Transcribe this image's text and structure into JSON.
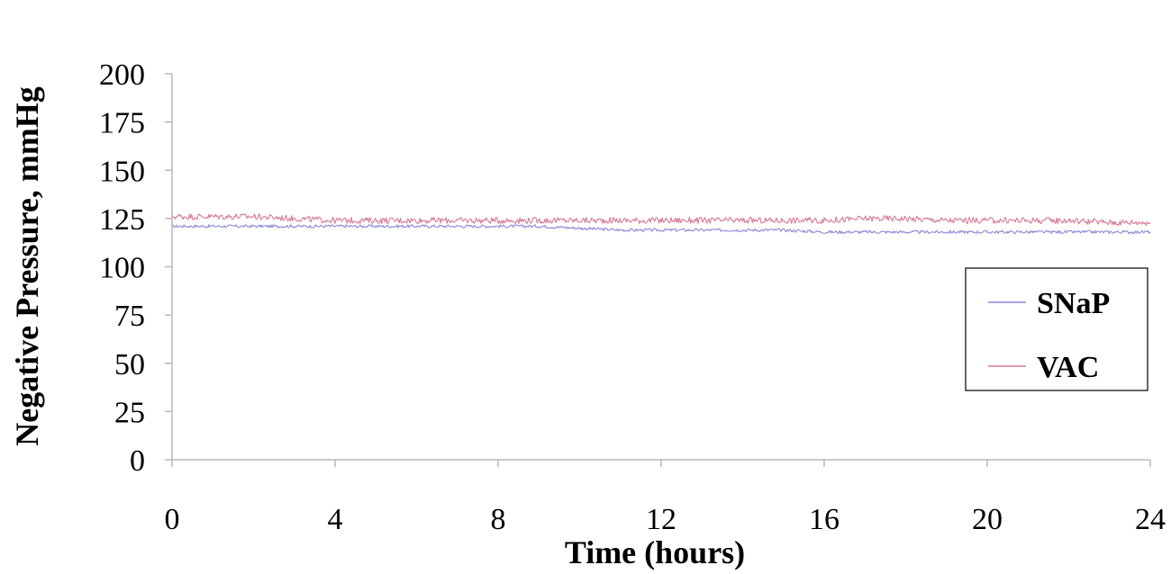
{
  "chart_data": {
    "type": "line",
    "xlabel": "Time (hours)",
    "ylabel": "Negative Pressure, mmHg",
    "xlim": [
      0,
      24
    ],
    "ylim": [
      0,
      200
    ],
    "x_ticks": [
      0,
      4,
      8,
      12,
      16,
      20,
      24
    ],
    "y_ticks": [
      0,
      25,
      50,
      75,
      100,
      125,
      150,
      175,
      200
    ],
    "grid": false,
    "legend_position": "right",
    "series": [
      {
        "name": "SNaP",
        "color": "#8a8ad8",
        "x": [
          0,
          1,
          2,
          3,
          4,
          5,
          6,
          7,
          8,
          9,
          10,
          11,
          12,
          13,
          14,
          15,
          16,
          17,
          18,
          19,
          20,
          21,
          22,
          23,
          24
        ],
        "values": [
          121,
          121,
          121,
          121,
          121,
          121,
          121,
          121,
          121,
          121,
          120,
          119,
          119,
          119,
          119,
          119,
          118,
          118,
          118,
          118,
          118,
          118,
          118,
          118,
          118
        ]
      },
      {
        "name": "VAC",
        "color": "#d67890",
        "x": [
          0,
          1,
          2,
          3,
          4,
          5,
          6,
          7,
          8,
          9,
          10,
          11,
          12,
          13,
          14,
          15,
          16,
          17,
          18,
          19,
          20,
          21,
          22,
          23,
          24
        ],
        "values": [
          126,
          126,
          126,
          125,
          124,
          124,
          124,
          124,
          124,
          124,
          124,
          124,
          124,
          124,
          124,
          124,
          124,
          125,
          125,
          124,
          124,
          124,
          124,
          123,
          123
        ]
      }
    ]
  }
}
